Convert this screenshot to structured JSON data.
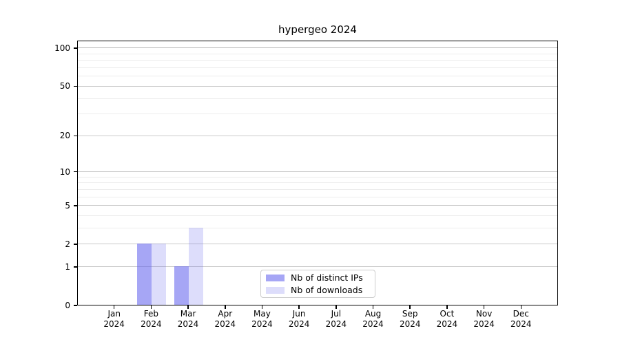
{
  "title": "hypergeo 2024",
  "background_color": "#ffffff",
  "chart_data": {
    "type": "bar",
    "title": "hypergeo 2024",
    "categories": [
      "Jan 2024",
      "Feb 2024",
      "Mar 2024",
      "Apr 2024",
      "May 2024",
      "Jun 2024",
      "Jul 2024",
      "Aug 2024",
      "Sep 2024",
      "Oct 2024",
      "Nov 2024",
      "Dec 2024"
    ],
    "series": [
      {
        "name": "Nb of distinct IPs",
        "color": "rgba(102,102,238,0.58)",
        "values": [
          0,
          2,
          1,
          0,
          0,
          0,
          0,
          0,
          0,
          0,
          0,
          0
        ]
      },
      {
        "name": "Nb of downloads",
        "color": "rgba(102,102,238,0.22)",
        "values": [
          0,
          2,
          3,
          0,
          0,
          0,
          0,
          0,
          0,
          0,
          0,
          0
        ]
      }
    ],
    "y_axis": {
      "scale": "log1p",
      "ticks": [
        0,
        1,
        2,
        5,
        10,
        20,
        50,
        100
      ],
      "minor_gridlines": [
        3,
        4,
        6,
        7,
        8,
        9,
        30,
        40,
        60,
        70,
        80,
        90
      ],
      "range": [
        0,
        115
      ]
    },
    "grid": {
      "show": true,
      "major_color": "#c9c9c9",
      "minor_color": "#ececec",
      "line_100_color": "#b4b4b4"
    },
    "legend": {
      "position": "lower center",
      "border_color": "#cccccc"
    }
  }
}
